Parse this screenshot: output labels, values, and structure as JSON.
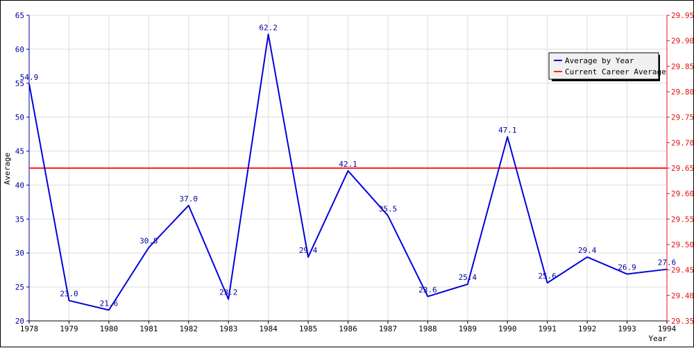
{
  "chart_data": {
    "type": "line",
    "xlabel": "Year",
    "ylabel": "Average",
    "categories": [
      "1978",
      "1979",
      "1980",
      "1981",
      "1982",
      "1983",
      "1984",
      "1985",
      "1986",
      "1987",
      "1988",
      "1989",
      "1990",
      "1991",
      "1992",
      "1993",
      "1994"
    ],
    "series": [
      {
        "name": "Average by Year",
        "color": "#0000dd",
        "values": [
          54.9,
          23.0,
          21.6,
          30.8,
          37.0,
          23.2,
          62.2,
          29.4,
          42.1,
          35.5,
          23.6,
          25.4,
          47.1,
          25.6,
          29.4,
          26.9,
          27.6
        ],
        "labels": [
          "54.9",
          "23.0",
          "21.6",
          "30.8",
          "37.0",
          "23.2",
          "62.2",
          "29.4",
          "42.1",
          "35.5",
          "23.6",
          "25.4",
          "47.1",
          "25.6",
          "29.4",
          "26.9",
          "27.6"
        ]
      }
    ],
    "reference_line": {
      "name": "Current Career Average",
      "color": "#ff2020",
      "value_right_axis": 29.65
    },
    "y_left": {
      "ylim": [
        20,
        65
      ],
      "ticks": [
        "20",
        "25",
        "30",
        "35",
        "40",
        "45",
        "50",
        "55",
        "60",
        "65"
      ],
      "color": "#0000a0"
    },
    "y_right": {
      "ylim": [
        29.35,
        29.95
      ],
      "ticks": [
        "29.35",
        "29.40",
        "29.45",
        "29.50",
        "29.55",
        "29.60",
        "29.65",
        "29.70",
        "29.75",
        "29.80",
        "29.85",
        "29.90",
        "29.95"
      ],
      "color": "#e01010"
    },
    "grid": true,
    "legend_placement": "top-right"
  }
}
